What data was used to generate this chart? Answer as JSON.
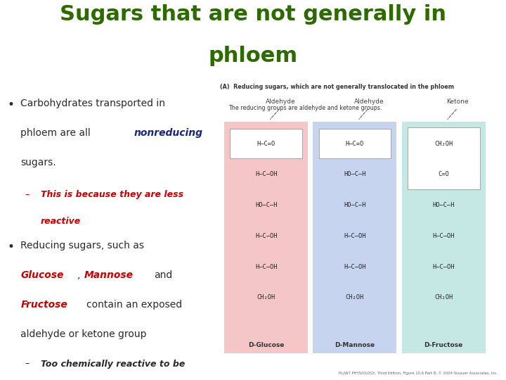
{
  "title_line1": "Sugars that are not generally in",
  "title_line2": "phloem",
  "title_color": "#2d6a00",
  "bg_color": "#ffffff",
  "bullet1_text_color": "#2a2a2a",
  "bullet1_nonreducing_color": "#1a237e",
  "sub1_color": "#cc0000",
  "bullet2_red_color": "#cc0000",
  "box1_color": "#f5c6c6",
  "box2_color": "#c6d4f0",
  "box3_color": "#c6e8e4",
  "glucose_formula": [
    "H–C=O",
    "H–C–OH",
    "HO–C–H",
    "H–C–OH",
    "H–C–OH",
    "CH₂OH"
  ],
  "mannose_formula": [
    "H–C=O",
    "HO–C–H",
    "HO–C–H",
    "H–C–OH",
    "H–C–OH",
    "CH₂OH"
  ],
  "fructose_formula": [
    "CH₂OH",
    "C=O",
    "HO–C–H",
    "H–C–OH",
    "H–C–OH",
    "CH₂OH"
  ],
  "credit_text": "PLANT PHYSIOLOGY, Third Edition, Figure 10.6 Part B, © 2004 Sinauer Associates, Inc."
}
